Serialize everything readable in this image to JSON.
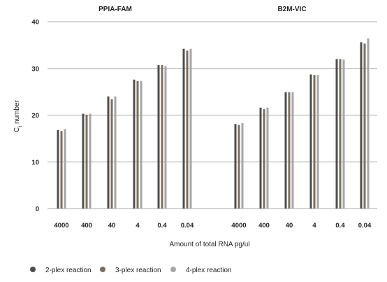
{
  "chart_data": {
    "type": "bar",
    "ylabel_main": "C",
    "ylabel_sub": "t",
    "ylabel_rest": " number",
    "xlabel": "Amount of total RNA pg/ul",
    "ylim": [
      0,
      40
    ],
    "yticks": [
      0,
      10,
      20,
      30,
      40
    ],
    "grid": true,
    "legend_position": "bottom",
    "series_colors": [
      "#4d4d4d",
      "#7d6e5e",
      "#a6a6a6"
    ],
    "series": [
      {
        "name": "2-plex reaction"
      },
      {
        "name": "3-plex reaction"
      },
      {
        "name": "4-plex reaction"
      }
    ],
    "panels": [
      {
        "title": "PPIA-FAM",
        "categories": [
          "4000",
          "400",
          "40",
          "4",
          "0.4",
          "0.04"
        ],
        "values": [
          [
            16.8,
            20.3,
            24.0,
            27.6,
            30.7,
            34.2
          ],
          [
            16.6,
            20.1,
            23.4,
            27.3,
            30.7,
            33.8
          ],
          [
            17.0,
            20.3,
            24.0,
            27.3,
            30.5,
            34.2
          ]
        ]
      },
      {
        "title": "B2M-VIC",
        "categories": [
          "4000",
          "400",
          "40",
          "4",
          "0.4",
          "0.04"
        ],
        "values": [
          [
            18.1,
            21.6,
            24.9,
            28.7,
            32.0,
            35.6
          ],
          [
            17.9,
            21.3,
            24.9,
            28.6,
            32.0,
            35.3
          ],
          [
            18.3,
            21.6,
            24.9,
            28.6,
            31.9,
            36.4
          ]
        ]
      }
    ]
  }
}
